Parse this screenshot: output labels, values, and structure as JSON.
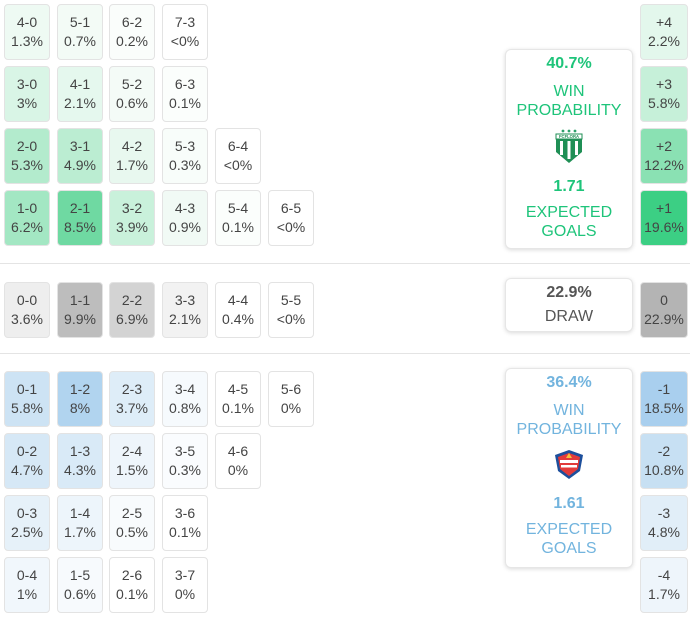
{
  "home_rows": [
    [
      {
        "score": "4-0",
        "pct": "1.3%",
        "bg": "#eefaf3"
      },
      {
        "score": "5-1",
        "pct": "0.7%",
        "bg": "#f3fbf6"
      },
      {
        "score": "6-2",
        "pct": "0.2%",
        "bg": "#fafdfb"
      },
      {
        "score": "7-3",
        "pct": "<0%",
        "bg": "#ffffff"
      }
    ],
    [
      {
        "score": "3-0",
        "pct": "3%",
        "bg": "#d9f5e6"
      },
      {
        "score": "4-1",
        "pct": "2.1%",
        "bg": "#e5f8ee"
      },
      {
        "score": "5-2",
        "pct": "0.6%",
        "bg": "#f4fbf7"
      },
      {
        "score": "6-3",
        "pct": "0.1%",
        "bg": "#fbfefc"
      }
    ],
    [
      {
        "score": "2-0",
        "pct": "5.3%",
        "bg": "#b3ebcd"
      },
      {
        "score": "3-1",
        "pct": "4.9%",
        "bg": "#bbedd2"
      },
      {
        "score": "4-2",
        "pct": "1.7%",
        "bg": "#e8f8ef"
      },
      {
        "score": "5-3",
        "pct": "0.3%",
        "bg": "#f8fdfa"
      },
      {
        "score": "6-4",
        "pct": "<0%",
        "bg": "#ffffff"
      }
    ],
    [
      {
        "score": "1-0",
        "pct": "6.2%",
        "bg": "#a3e7c3"
      },
      {
        "score": "2-1",
        "pct": "8.5%",
        "bg": "#6fd9a2"
      },
      {
        "score": "3-2",
        "pct": "3.9%",
        "bg": "#c9f1db"
      },
      {
        "score": "4-3",
        "pct": "0.9%",
        "bg": "#f1faf5"
      },
      {
        "score": "5-4",
        "pct": "0.1%",
        "bg": "#fbfefc"
      },
      {
        "score": "6-5",
        "pct": "<0%",
        "bg": "#ffffff"
      }
    ]
  ],
  "draw_row": [
    {
      "score": "0-0",
      "pct": "3.6%",
      "bg": "#eeeeee"
    },
    {
      "score": "1-1",
      "pct": "9.9%",
      "bg": "#bdbdbd"
    },
    {
      "score": "2-2",
      "pct": "6.9%",
      "bg": "#d3d3d3"
    },
    {
      "score": "3-3",
      "pct": "2.1%",
      "bg": "#f2f2f2"
    },
    {
      "score": "4-4",
      "pct": "0.4%",
      "bg": "#ffffff"
    },
    {
      "score": "5-5",
      "pct": "<0%",
      "bg": "#ffffff"
    }
  ],
  "away_rows": [
    [
      {
        "score": "0-1",
        "pct": "5.8%",
        "bg": "#cde3f4"
      },
      {
        "score": "1-2",
        "pct": "8%",
        "bg": "#b1d4ef"
      },
      {
        "score": "2-3",
        "pct": "3.7%",
        "bg": "#deedf8"
      },
      {
        "score": "3-4",
        "pct": "0.8%",
        "bg": "#f6fafd"
      },
      {
        "score": "4-5",
        "pct": "0.1%",
        "bg": "#ffffff"
      },
      {
        "score": "5-6",
        "pct": "0%",
        "bg": "#ffffff"
      }
    ],
    [
      {
        "score": "0-2",
        "pct": "4.7%",
        "bg": "#d6e8f6"
      },
      {
        "score": "1-3",
        "pct": "4.3%",
        "bg": "#d9eaf7"
      },
      {
        "score": "2-4",
        "pct": "1.5%",
        "bg": "#eef5fb"
      },
      {
        "score": "3-5",
        "pct": "0.3%",
        "bg": "#fafcfe"
      },
      {
        "score": "4-6",
        "pct": "0%",
        "bg": "#ffffff"
      }
    ],
    [
      {
        "score": "0-3",
        "pct": "2.5%",
        "bg": "#e6f1f9"
      },
      {
        "score": "1-4",
        "pct": "1.7%",
        "bg": "#edf5fb"
      },
      {
        "score": "2-5",
        "pct": "0.5%",
        "bg": "#f8fbfd"
      },
      {
        "score": "3-6",
        "pct": "0.1%",
        "bg": "#ffffff"
      }
    ],
    [
      {
        "score": "0-4",
        "pct": "1%",
        "bg": "#f1f7fc"
      },
      {
        "score": "1-5",
        "pct": "0.6%",
        "bg": "#f7fafd"
      },
      {
        "score": "2-6",
        "pct": "0.1%",
        "bg": "#ffffff"
      },
      {
        "score": "3-7",
        "pct": "0%",
        "bg": "#ffffff"
      }
    ]
  ],
  "margins": [
    {
      "label": "+4",
      "pct": "2.2%",
      "bg": "#e3f7ec"
    },
    {
      "label": "+3",
      "pct": "5.8%",
      "bg": "#c6f0d9"
    },
    {
      "label": "+2",
      "pct": "12.2%",
      "bg": "#8ae1b3"
    },
    {
      "label": "+1",
      "pct": "19.6%",
      "bg": "#3ccf84"
    },
    {
      "label": "0",
      "pct": "22.9%",
      "bg": "#b4b4b4"
    },
    {
      "label": "-1",
      "pct": "18.5%",
      "bg": "#a9cfee"
    },
    {
      "label": "-2",
      "pct": "10.8%",
      "bg": "#c7e0f3"
    },
    {
      "label": "-3",
      "pct": "4.8%",
      "bg": "#e1eef8"
    },
    {
      "label": "-4",
      "pct": "1.7%",
      "bg": "#eef5fb"
    }
  ],
  "home_card": {
    "win_pct": "40.7%",
    "win_label_1": "WIN",
    "win_label_2": "PROBABILITY",
    "xg": "1.71",
    "xg_label_1": "EXPECTED",
    "xg_label_2": "GOALS",
    "crest_text": "FCFLORA",
    "color": "#1ec47a"
  },
  "draw_card": {
    "pct": "22.9%",
    "label": "DRAW"
  },
  "away_card": {
    "win_pct": "36.4%",
    "win_label_1": "WIN",
    "win_label_2": "PROBABILITY",
    "xg": "1.61",
    "xg_label_1": "EXPECTED",
    "xg_label_2": "GOALS",
    "color": "#72b4de"
  }
}
